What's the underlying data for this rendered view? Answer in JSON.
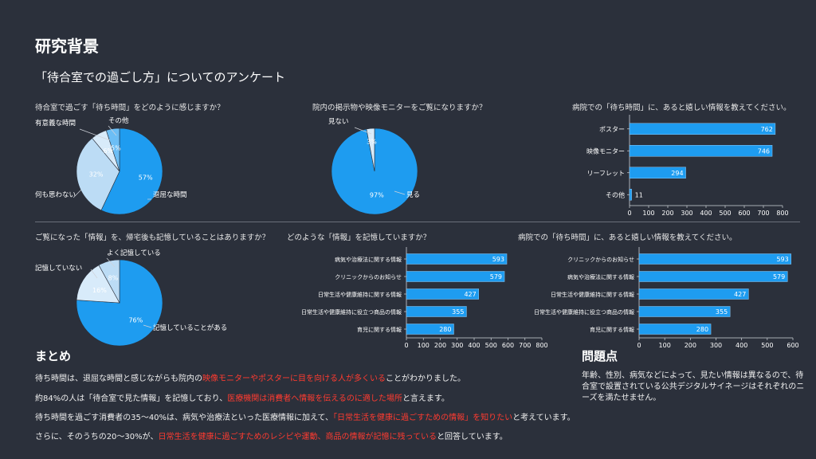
{
  "page": {
    "title": "研究背景",
    "subtitle": "「待合室での過ごし方」についてのアンケート"
  },
  "charts": {
    "q1": {
      "question": "待合室で過ごす「待ち時間」をどのように感じますか？"
    },
    "q2": {
      "question": "院内の掲示物や映像モニターをご覧になりますか？"
    },
    "q3": {
      "question": "病院での「待ち時間」に、あると嬉しい情報を教えてください。"
    },
    "q4": {
      "question": "ご覧になった「情報」を、帰宅後も記憶していることはありますか？"
    },
    "q5": {
      "question": "どのような「情報」を記憶していますか？"
    },
    "q6": {
      "question": "病院での「待ち時間」に、あると嬉しい情報を教えてください。"
    }
  },
  "chart_data": [
    {
      "id": "q1",
      "type": "pie",
      "categories": [
        "退屈な時間",
        "何も思わない",
        "有意義な時間",
        "その他"
      ],
      "values": [
        57,
        32,
        6,
        5
      ],
      "value_labels": [
        "57%",
        "32%",
        "6%",
        "5%"
      ],
      "colors": [
        "#1e9cf0",
        "#bcdcf5",
        "#d8ebfa",
        "#6cbef5"
      ]
    },
    {
      "id": "q2",
      "type": "pie",
      "categories": [
        "見る",
        "見ない"
      ],
      "values": [
        97,
        3
      ],
      "value_labels": [
        "97%",
        "3%"
      ],
      "colors": [
        "#1e9cf0",
        "#d8ebfa"
      ]
    },
    {
      "id": "q3",
      "type": "bar",
      "orientation": "horizontal",
      "categories": [
        "ポスター",
        "映像モニター",
        "リーフレット",
        "その他"
      ],
      "values": [
        762,
        746,
        294,
        11
      ],
      "xlim": [
        0,
        800
      ],
      "ticks": [
        "0",
        "100",
        "200",
        "300",
        "400",
        "500",
        "600",
        "700",
        "800"
      ]
    },
    {
      "id": "q4",
      "type": "pie",
      "categories": [
        "記憶していることがある",
        "記憶していない",
        "よく記憶している"
      ],
      "values": [
        76,
        16,
        8
      ],
      "value_labels": [
        "76%",
        "16%",
        "8%"
      ],
      "colors": [
        "#1e9cf0",
        "#d8ebfa",
        "#bcdcf5"
      ]
    },
    {
      "id": "q5",
      "type": "bar",
      "orientation": "horizontal",
      "categories": [
        "病気や治療法に関する情報",
        "クリニックからのお知らせ",
        "日常生活や健康維持に関する情報",
        "日常生活や健康維持に役立つ商品の情報",
        "育児に関する情報"
      ],
      "values": [
        593,
        579,
        427,
        355,
        280
      ],
      "xlim": [
        0,
        800
      ],
      "ticks": [
        "0",
        "100",
        "200",
        "300",
        "400",
        "500",
        "600",
        "700",
        "800"
      ]
    },
    {
      "id": "q6",
      "type": "bar",
      "orientation": "horizontal",
      "categories": [
        "クリニックからのお知らせ",
        "病気や治療法に関する情報",
        "日常生活や健康維持に関する情報",
        "日常生活や健康維持に役立つ商品の情報",
        "育児に関する情報"
      ],
      "values": [
        593,
        579,
        427,
        355,
        280
      ],
      "xlim": [
        0,
        600
      ],
      "ticks": [
        "0",
        "100",
        "200",
        "300",
        "400",
        "500",
        "600"
      ]
    }
  ],
  "summary": {
    "title": "まとめ",
    "p1": {
      "a": "待ち時間は、退屈な時間と感じながらも院内の",
      "b": "映像モニターやポスターに目を向ける人が多くいる",
      "c": "ことがわかりました。"
    },
    "p2": {
      "a": "約84%の人は「待合室で見た情報」を記憶しており、",
      "b": "医療機関は消費者へ情報を伝えるのに適した場所",
      "c": "と言えます。"
    },
    "p3": {
      "a": "待ち時間を過ごす消費者の35〜40%は、病気や治療法といった医療情報に加えて、",
      "b": "「日常生活を健康に過ごすための情報」を知りたい",
      "c": "と考えています。"
    },
    "p4": {
      "a": "さらに、そのうちの20〜30%が、",
      "b": "日常生活を健康に過ごすためのレシピや運動、商品の情報が記憶に残っている",
      "c": "と回答しています。"
    }
  },
  "problem": {
    "title": "問題点",
    "text": "年齢、性別、病気などによって、見たい情報は異なるので、待合室で設置されている公共デジタルサイネージはそれぞれのニーズを満たせません。"
  }
}
